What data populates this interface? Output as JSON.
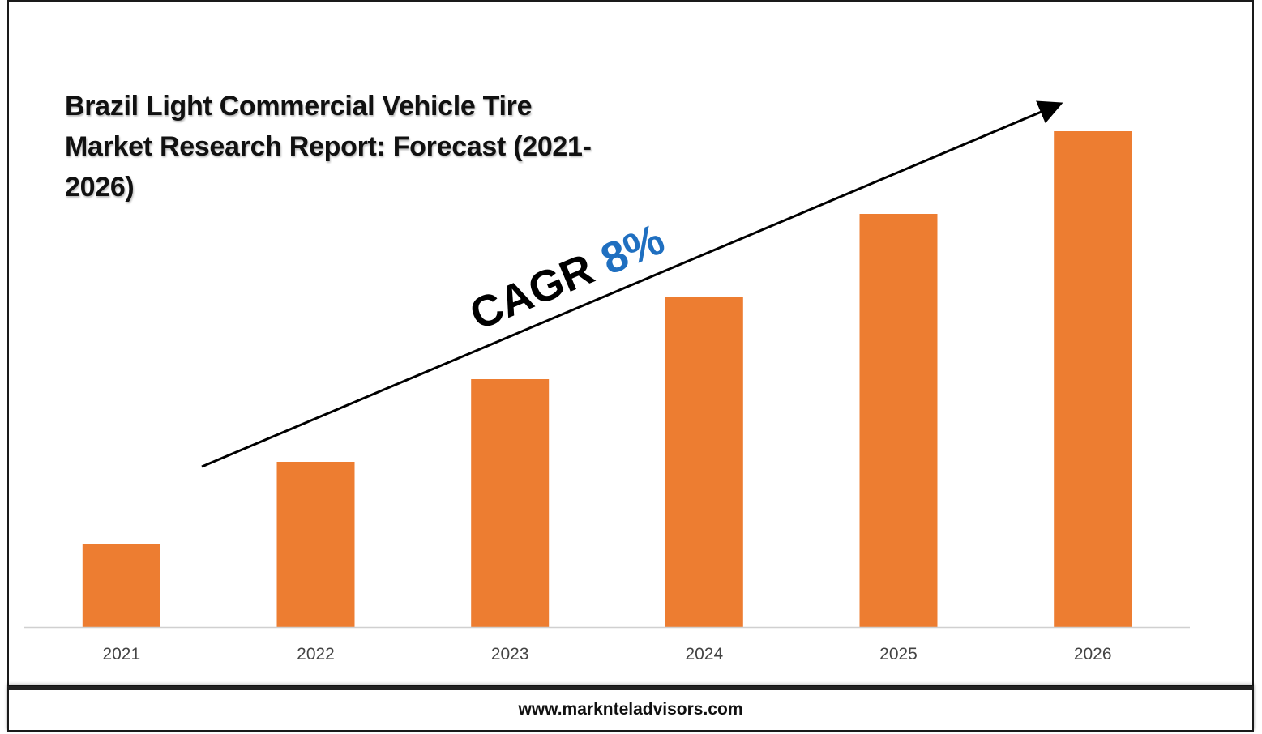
{
  "chart_data": {
    "type": "bar",
    "title": "Brazil Light Commercial Vehicle Tire Market Research Report: Forecast (2021-2026)",
    "categories": [
      "2021",
      "2022",
      "2023",
      "2024",
      "2025",
      "2026"
    ],
    "values": [
      1,
      2,
      3,
      4,
      5,
      6
    ],
    "xlabel": "",
    "ylabel": "",
    "ylim": [
      0,
      6
    ],
    "grid": false,
    "bar_color": "#ED7D31",
    "annotation": {
      "label": "CAGR",
      "value": "8%",
      "value_color": "#1F6FC0"
    }
  },
  "footer": {
    "website": "www.marknteladvisors.com"
  }
}
